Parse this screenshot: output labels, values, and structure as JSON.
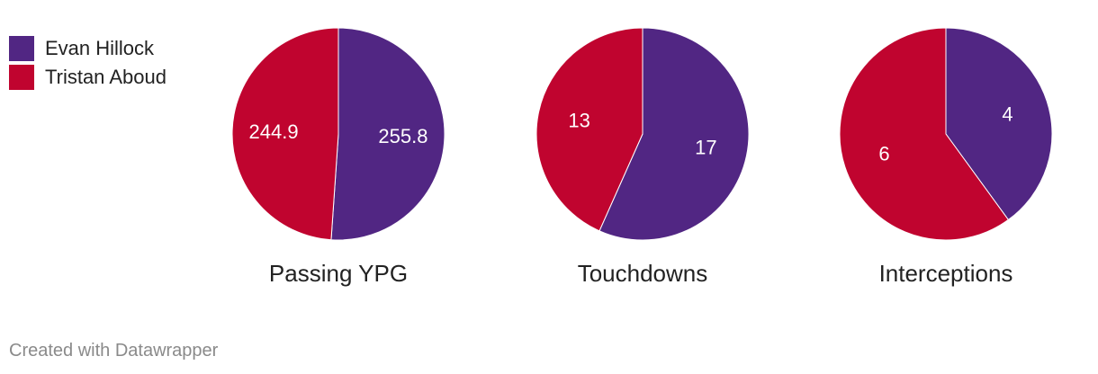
{
  "legend": [
    {
      "label": "Evan Hillock",
      "color": "#512683"
    },
    {
      "label": "Tristan Aboud",
      "color": "#c0042f"
    }
  ],
  "chart_data": [
    {
      "type": "pie",
      "title": "Passing YPG",
      "slices": [
        {
          "label": "Evan Hillock",
          "value": 255.8,
          "display": "255.8",
          "color": "#512683"
        },
        {
          "label": "Tristan Aboud",
          "value": 244.9,
          "display": "244.9",
          "color": "#c0042f"
        }
      ]
    },
    {
      "type": "pie",
      "title": "Touchdowns",
      "slices": [
        {
          "label": "Evan Hillock",
          "value": 17,
          "display": "17",
          "color": "#512683"
        },
        {
          "label": "Tristan Aboud",
          "value": 13,
          "display": "13",
          "color": "#c0042f"
        }
      ]
    },
    {
      "type": "pie",
      "title": "Interceptions",
      "slices": [
        {
          "label": "Evan Hillock",
          "value": 4,
          "display": "4",
          "color": "#512683"
        },
        {
          "label": "Tristan Aboud",
          "value": 6,
          "display": "6",
          "color": "#c0042f"
        }
      ]
    }
  ],
  "footer": {
    "credit": "Created with Datawrapper"
  }
}
